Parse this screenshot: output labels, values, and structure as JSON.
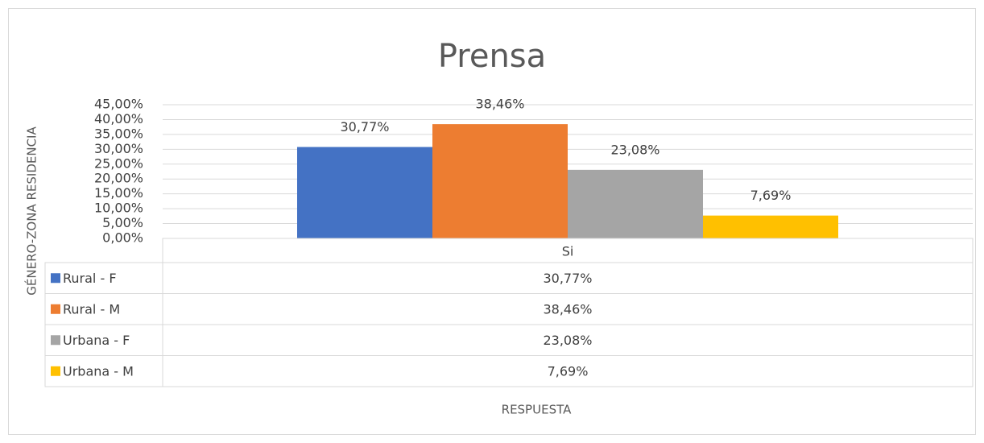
{
  "chart_data": {
    "type": "bar",
    "title": "Prensa",
    "y_label": "GÉNERO-ZONA RESIDENCIA",
    "x_label": "RESPUESTA",
    "categories": [
      "Si"
    ],
    "series": [
      {
        "name": "Rural - F",
        "color": "#4472c4",
        "values": [
          30.77
        ],
        "value_labels": [
          "30,77%"
        ]
      },
      {
        "name": "Rural - M",
        "color": "#ed7d31",
        "values": [
          38.46
        ],
        "value_labels": [
          "38,46%"
        ]
      },
      {
        "name": "Urbana - F",
        "color": "#a5a5a5",
        "values": [
          23.08
        ],
        "value_labels": [
          "23,08%"
        ]
      },
      {
        "name": "Urbana - M",
        "color": "#ffc000",
        "values": [
          7.69
        ],
        "value_labels": [
          "7,69%"
        ]
      }
    ],
    "ylim": [
      0,
      45
    ],
    "yticks": [
      {
        "value": 0,
        "label": "0,00%"
      },
      {
        "value": 5,
        "label": "5,00%"
      },
      {
        "value": 10,
        "label": "10,00%"
      },
      {
        "value": 15,
        "label": "15,00%"
      },
      {
        "value": 20,
        "label": "20,00%"
      },
      {
        "value": 25,
        "label": "25,00%"
      },
      {
        "value": 30,
        "label": "30,00%"
      },
      {
        "value": 35,
        "label": "35,00%"
      },
      {
        "value": 40,
        "label": "40,00%"
      },
      {
        "value": 45,
        "label": "45,00%"
      }
    ],
    "grid": true,
    "data_table": true
  }
}
